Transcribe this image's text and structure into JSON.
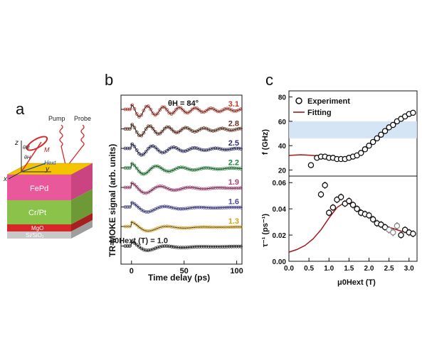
{
  "panel_a": {
    "letter": "a",
    "pump": "Pump",
    "probe": "Probe",
    "layers": [
      "FePd",
      "Cr/Pt",
      "MgO",
      "Si/SiO₂"
    ],
    "layer_colors": [
      "#e8589a",
      "#8bc34a",
      "#d62828",
      "#c8c8c8"
    ],
    "top_color": "#f5c400",
    "axis_z": "z",
    "axis_x": "x",
    "axis_y": "y",
    "theta_h": "θH",
    "theta_m": "θM",
    "moment": "M",
    "hext": "Hext"
  },
  "panel_b": {
    "letter": "b",
    "angle_label": "θH = 84°",
    "ylabel": "TR-MOKE signal (arb. units)",
    "xlabel": "Time delay (ps)",
    "field_prefix": "μ0Hext (T) = ",
    "xticks": [
      "0",
      "50",
      "100"
    ]
  },
  "panel_c": {
    "letter": "c",
    "legend_experiment": "Experiment",
    "legend_fitting": "Fitting",
    "top_ylabel": "f (GHz)",
    "bottom_ylabel": "τ⁻¹ (ps⁻¹)",
    "xlabel": "μ0Hext (T)",
    "top_yticks": [
      "20",
      "40",
      "60",
      "80"
    ],
    "bottom_yticks": [
      "0.00",
      "0.02",
      "0.04",
      "0.06"
    ],
    "xticks": [
      "0.0",
      "0.5",
      "1.0",
      "1.5",
      "2.0",
      "2.5",
      "3.0"
    ]
  },
  "chart_data": [
    {
      "type": "line",
      "title": "",
      "xlabel": "Time delay (ps)",
      "ylabel": "TR-MOKE signal (arb. units)",
      "xlim": [
        -10,
        105
      ],
      "series": [
        {
          "name": "3.1",
          "color": "#c0392b",
          "frequency_ghz": 66,
          "decay_ps": 60
        },
        {
          "name": "2.8",
          "color": "#6b2e1f",
          "frequency_ghz": 58,
          "decay_ps": 50
        },
        {
          "name": "2.5",
          "color": "#2e2e6b",
          "frequency_ghz": 50,
          "decay_ps": 40
        },
        {
          "name": "2.2",
          "color": "#1e8a3a",
          "frequency_ghz": 42,
          "decay_ps": 35
        },
        {
          "name": "1.9",
          "color": "#b0407a",
          "frequency_ghz": 36,
          "decay_ps": 30
        },
        {
          "name": "1.6",
          "color": "#4a4aa0",
          "frequency_ghz": 31,
          "decay_ps": 25
        },
        {
          "name": "1.3",
          "color": "#d4a017",
          "frequency_ghz": 29,
          "decay_ps": 22
        },
        {
          "name": "1.0",
          "color": "#222222",
          "frequency_ghz": 30,
          "decay_ps": 20
        }
      ]
    },
    {
      "type": "scatter",
      "title": "",
      "xlabel": "μ0Hext (T)",
      "ylabel": "f (GHz)",
      "xlim": [
        0,
        3.2
      ],
      "ylim": [
        15,
        85
      ],
      "highlight_band": [
        46,
        60
      ],
      "experiment": {
        "x": [
          0.55,
          0.7,
          0.8,
          0.9,
          1.0,
          1.1,
          1.2,
          1.3,
          1.4,
          1.5,
          1.6,
          1.7,
          1.8,
          1.9,
          2.0,
          2.1,
          2.2,
          2.3,
          2.4,
          2.5,
          2.6,
          2.7,
          2.8,
          2.9,
          3.0,
          3.1
        ],
        "y": [
          24,
          30,
          31,
          31,
          30,
          30,
          29,
          29,
          29,
          30,
          31,
          32,
          34,
          37,
          40,
          43,
          46,
          49,
          52,
          55,
          57,
          60,
          62,
          64,
          66,
          67
        ]
      },
      "fitting": {
        "x": [
          0.0,
          0.3,
          0.6,
          0.9,
          1.2,
          1.4,
          1.6,
          1.8,
          2.0,
          2.2,
          2.4,
          2.6,
          2.8,
          3.0,
          3.1
        ],
        "y": [
          32,
          32.5,
          32,
          31,
          29.5,
          29.5,
          31,
          34,
          39,
          45,
          51,
          56,
          61,
          65,
          67
        ]
      }
    },
    {
      "type": "scatter",
      "title": "",
      "xlabel": "μ0Hext (T)",
      "ylabel": "τ⁻¹ (ps⁻¹)",
      "xlim": [
        0,
        3.2
      ],
      "ylim": [
        0,
        0.065
      ],
      "experiment": {
        "x": [
          0.8,
          0.9,
          1.0,
          1.1,
          1.2,
          1.3,
          1.4,
          1.5,
          1.6,
          1.7,
          1.8,
          1.9,
          2.0,
          2.1,
          2.2,
          2.3,
          2.4,
          2.5,
          2.6,
          2.7,
          2.8,
          2.9,
          3.0,
          3.1
        ],
        "y": [
          0.051,
          0.058,
          0.037,
          0.041,
          0.047,
          0.049,
          0.044,
          0.046,
          0.043,
          0.04,
          0.037,
          0.036,
          0.035,
          0.032,
          0.029,
          0.028,
          0.026,
          0.024,
          0.022,
          0.027,
          0.02,
          0.024,
          0.022,
          0.021
        ]
      },
      "fitting": {
        "x": [
          0.0,
          0.2,
          0.4,
          0.6,
          0.8,
          1.0,
          1.2,
          1.4,
          1.6,
          1.8,
          2.0,
          2.2,
          2.4,
          2.6,
          2.8,
          3.0,
          3.1
        ],
        "y": [
          0.007,
          0.009,
          0.012,
          0.017,
          0.024,
          0.033,
          0.041,
          0.045,
          0.043,
          0.039,
          0.034,
          0.03,
          0.027,
          0.025,
          0.023,
          0.022,
          0.021
        ]
      }
    }
  ]
}
